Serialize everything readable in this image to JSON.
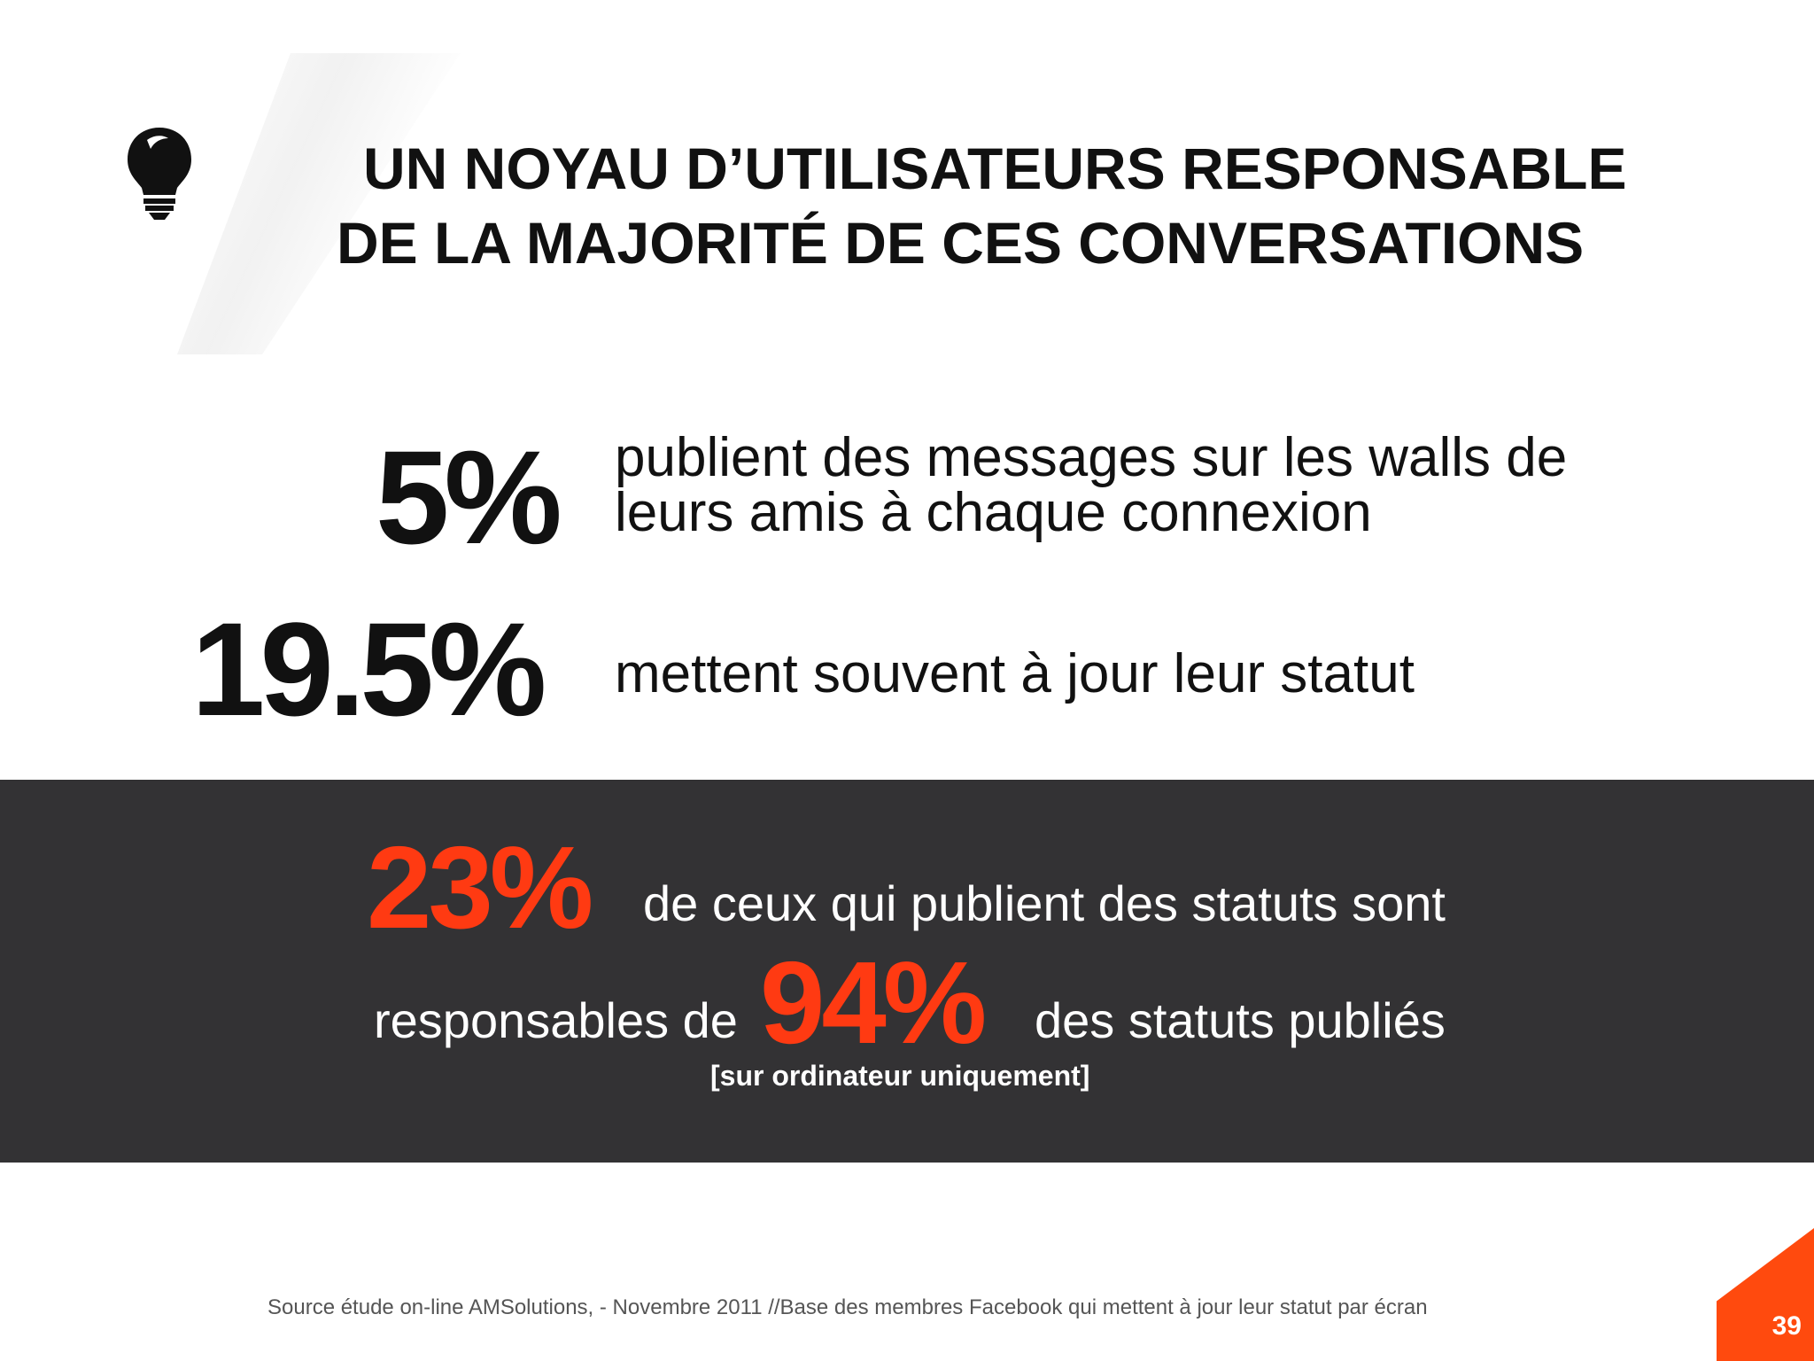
{
  "title": {
    "line1": "UN NOYAU D’UTILISATEURS RESPONSABLE",
    "line2": "DE LA MAJORITÉ DE CES CONVERSATIONS"
  },
  "stats": [
    {
      "value": "5%",
      "text_line1": "publient des messages sur les walls de",
      "text_line2": "leurs amis à chaque connexion"
    },
    {
      "value": "19.5%",
      "text_line1": "mettent souvent à jour leur statut"
    }
  ],
  "highlight": {
    "value1": "23%",
    "text1": "de ceux qui publient des statuts sont",
    "text2": "responsables de",
    "value2": "94%",
    "text3": "des statuts publiés",
    "note": "[sur ordinateur uniquement]"
  },
  "source": "Source étude on-line AMSolutions, - Novembre 2011  //Base des membres Facebook qui mettent à jour leur statut  par écran",
  "page_number": "39",
  "icon": "lightbulb-icon",
  "colors": {
    "accent": "#ff3a12",
    "band": "#333234",
    "text": "#111111"
  }
}
